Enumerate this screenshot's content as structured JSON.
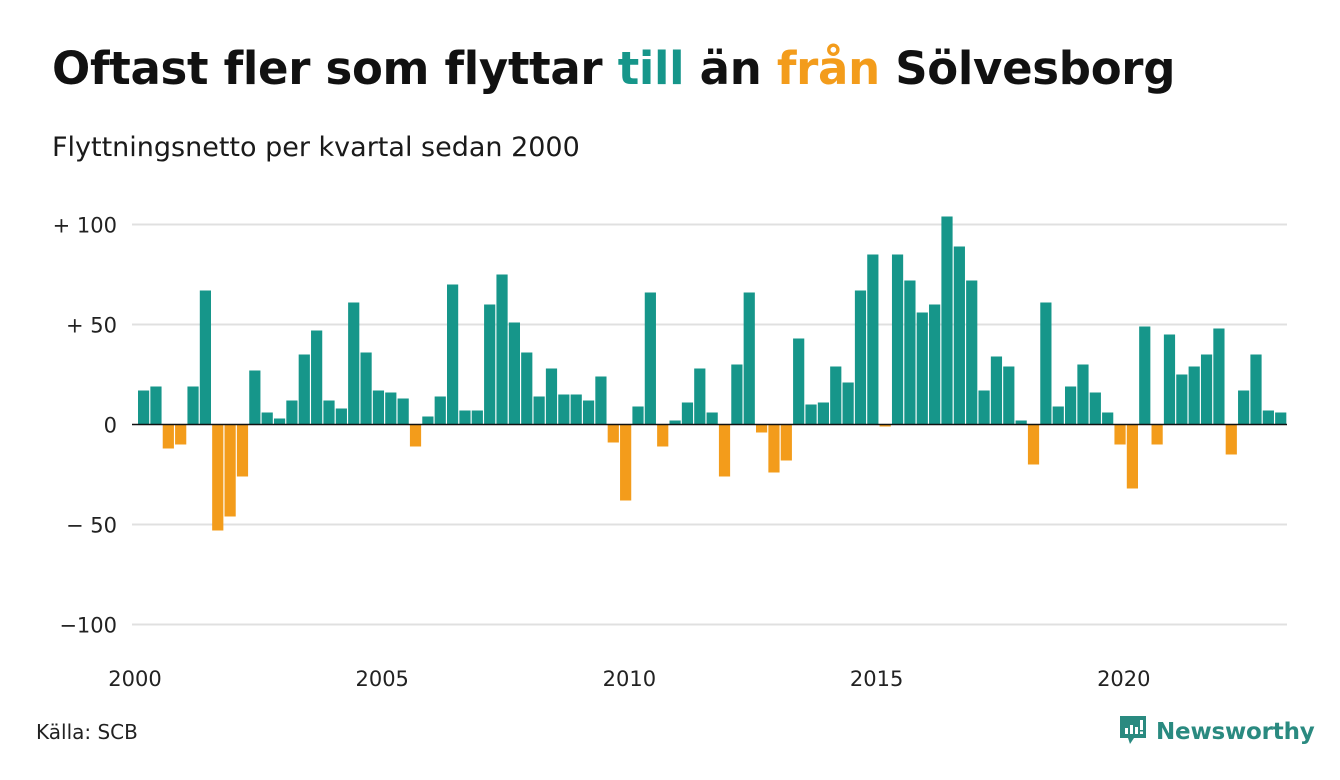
{
  "title": {
    "part1": "Oftast fler som flyttar ",
    "highlight_to": "till",
    "part2": " än ",
    "highlight_from": "från",
    "part3": " Sölvesborg"
  },
  "subtitle": "Flyttningsnetto per kvartal sedan 2000",
  "source": "Källa: SCB",
  "brand": {
    "name": "Newsworthy",
    "icon": "newsworthy-logo-icon"
  },
  "colors": {
    "positive": "#16968a",
    "negative": "#f39c1b",
    "grid": "#e0e0e0",
    "axis": "#111111"
  },
  "chart_data": {
    "type": "bar",
    "title": "Oftast fler som flyttar till än från Sölvesborg",
    "subtitle": "Flyttningsnetto per kvartal sedan 2000",
    "xlabel": "",
    "ylabel": "",
    "x_start": "2000 Q1",
    "x_end": "2023 Q1",
    "ylim": [
      -100,
      100
    ],
    "yticks": [
      100,
      50,
      0,
      -50,
      -100
    ],
    "ytick_labels": [
      "+ 100",
      "+  50",
      "0",
      "− 50",
      "−100"
    ],
    "xtick_labels": [
      "2000",
      "2005",
      "2010",
      "2015",
      "2020"
    ],
    "xtick_positions": [
      0,
      20,
      40,
      60,
      80
    ],
    "grid": true,
    "legend": "none",
    "values": [
      17,
      19,
      -12,
      -10,
      19,
      67,
      -53,
      -46,
      -26,
      27,
      6,
      3,
      12,
      35,
      47,
      12,
      8,
      61,
      36,
      17,
      16,
      13,
      -11,
      4,
      14,
      70,
      7,
      7,
      60,
      75,
      51,
      36,
      14,
      28,
      15,
      15,
      12,
      24,
      -9,
      -38,
      9,
      66,
      -11,
      2,
      11,
      28,
      6,
      -26,
      30,
      66,
      -4,
      -24,
      -18,
      43,
      10,
      11,
      29,
      21,
      67,
      85,
      -1,
      85,
      72,
      56,
      60,
      104,
      89,
      72,
      17,
      34,
      29,
      2,
      -20,
      61,
      9,
      19,
      30,
      16,
      6,
      -10,
      -32,
      49,
      -10,
      45,
      25,
      29,
      35,
      48,
      -15,
      17,
      35,
      7,
      6
    ]
  }
}
